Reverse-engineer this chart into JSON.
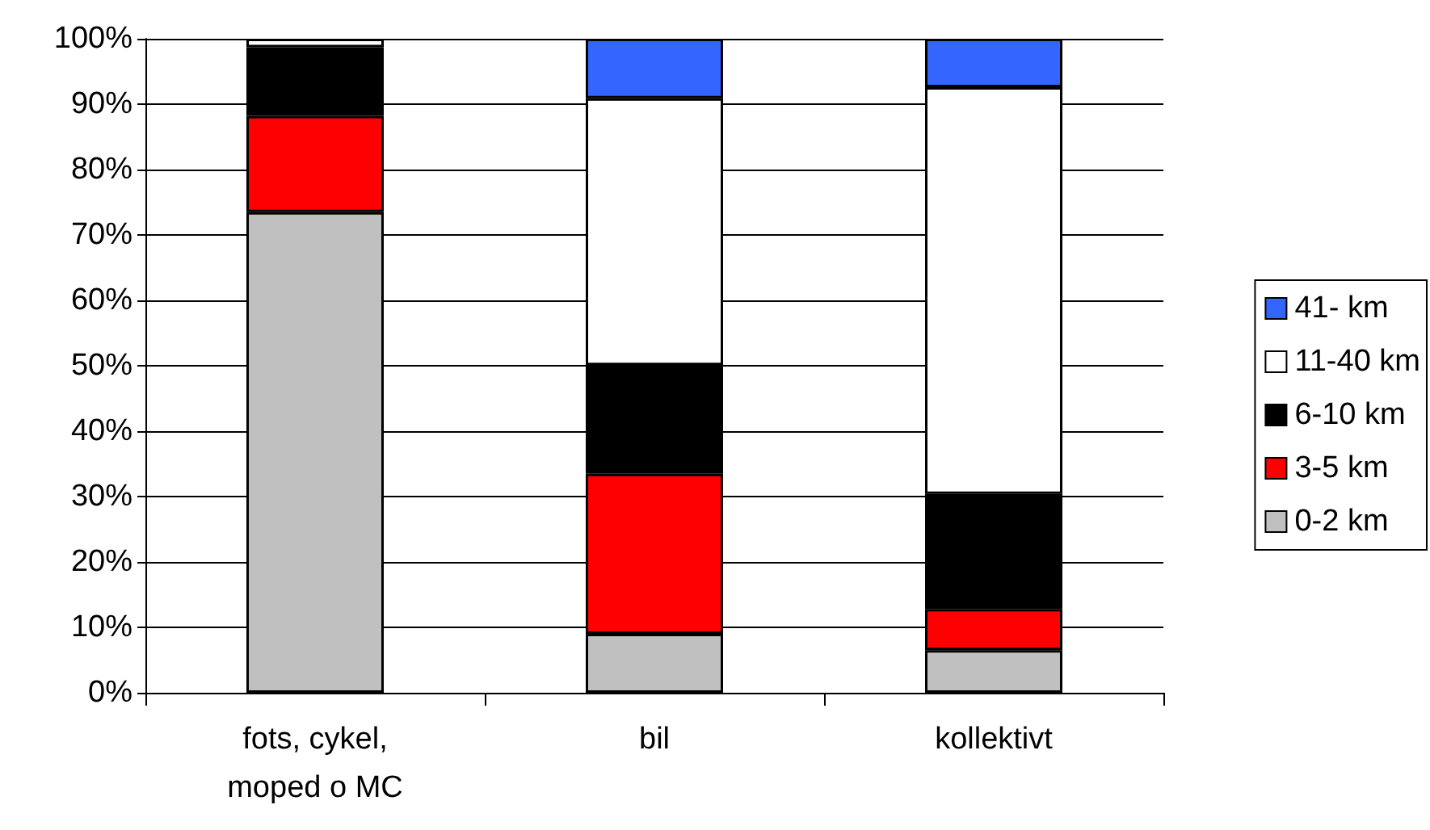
{
  "chart_data": {
    "type": "bar",
    "stacked": true,
    "categories": [
      "fots, cykel,\nmoped o MC",
      "bil",
      "kollektivt"
    ],
    "series": [
      {
        "name": "0-2 km",
        "color": "#c0c0c0",
        "values": [
          73.5,
          9,
          6.5
        ]
      },
      {
        "name": "3-5 km",
        "color": "#ff0000",
        "values": [
          14.7,
          24.5,
          6.3
        ]
      },
      {
        "name": "6-10 km",
        "color": "#000000",
        "values": [
          10.5,
          16.6,
          17.6
        ]
      },
      {
        "name": "11-40 km",
        "color": "#ffffff",
        "values": [
          1.3,
          40.8,
          62.2
        ]
      },
      {
        "name": "41- km",
        "color": "#3366ff",
        "values": [
          0,
          9.1,
          7.4
        ]
      }
    ],
    "ylim": [
      0,
      100
    ],
    "yticks": [
      {
        "value": 0,
        "label": "0%"
      },
      {
        "value": 10,
        "label": "10%"
      },
      {
        "value": 20,
        "label": "20%"
      },
      {
        "value": 30,
        "label": "30%"
      },
      {
        "value": 40,
        "label": "40%"
      },
      {
        "value": 50,
        "label": "50%"
      },
      {
        "value": 60,
        "label": "60%"
      },
      {
        "value": 70,
        "label": "70%"
      },
      {
        "value": 80,
        "label": "80%"
      },
      {
        "value": 90,
        "label": "90%"
      },
      {
        "value": 100,
        "label": "100%"
      }
    ],
    "grid": "y",
    "legend": "right"
  }
}
